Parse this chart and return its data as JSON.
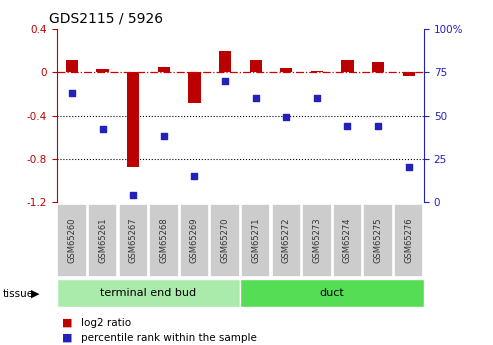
{
  "title": "GDS2115 / 5926",
  "samples": [
    "GSM65260",
    "GSM65261",
    "GSM65267",
    "GSM65268",
    "GSM65269",
    "GSM65270",
    "GSM65271",
    "GSM65272",
    "GSM65273",
    "GSM65274",
    "GSM65275",
    "GSM65276"
  ],
  "log2_ratio": [
    0.12,
    0.03,
    -0.88,
    0.05,
    -0.28,
    0.2,
    0.12,
    0.04,
    0.01,
    0.12,
    0.1,
    -0.03
  ],
  "percentile_rank": [
    63,
    42,
    4,
    38,
    15,
    70,
    60,
    49,
    60,
    44,
    44,
    20
  ],
  "bar_color": "#bb0000",
  "dot_color": "#2222bb",
  "dashed_line_color": "#cc0000",
  "ylim_left": [
    -1.2,
    0.4
  ],
  "ylim_right": [
    0,
    100
  ],
  "yticks_left": [
    -1.2,
    -0.8,
    -0.4,
    0.0,
    0.4
  ],
  "ytick_labels_left": [
    "-1.2",
    "-0.8",
    "-0.4",
    "0",
    "0.4"
  ],
  "yticks_right": [
    0,
    25,
    50,
    75,
    100
  ],
  "ytick_labels_right": [
    "0",
    "25",
    "50",
    "75",
    "100%"
  ],
  "groups": [
    {
      "label": "terminal end bud",
      "samples": 6,
      "color": "#aaeaaa"
    },
    {
      "label": "duct",
      "samples": 6,
      "color": "#55dd55"
    }
  ],
  "tissue_label": "tissue",
  "legend_items": [
    {
      "label": "log2 ratio",
      "color": "#bb0000"
    },
    {
      "label": "percentile rank within the sample",
      "color": "#2222bb"
    }
  ],
  "bg_color": "#ffffff",
  "hline_color": "#000000",
  "bar_width": 0.4
}
